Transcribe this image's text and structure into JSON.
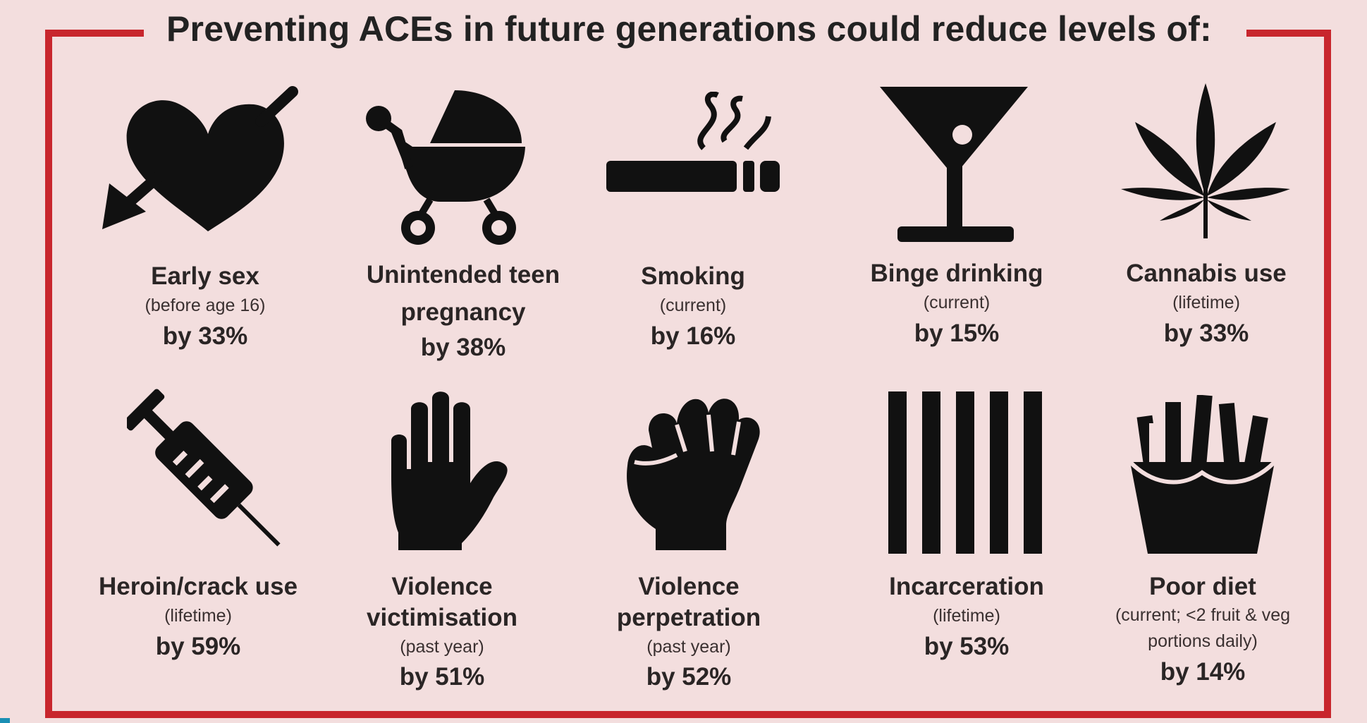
{
  "title": "Preventing ACEs in future generations could reduce levels of:",
  "items": [
    {
      "icon": "heart-with-arrow-icon",
      "label": "Early sex",
      "note": "(before age 16)",
      "value": "by 33%"
    },
    {
      "icon": "baby-pram-icon",
      "label": "Unintended teen pregnancy",
      "note": "",
      "value": "by 38%"
    },
    {
      "icon": "cigarette-icon",
      "label": "Smoking",
      "note": "(current)",
      "value": "by 16%"
    },
    {
      "icon": "cocktail-glass-icon",
      "label": "Binge drinking",
      "note": "(current)",
      "value": "by 15%"
    },
    {
      "icon": "cannabis-leaf-icon",
      "label": "Cannabis use",
      "note": "(lifetime)",
      "value": "by 33%"
    },
    {
      "icon": "syringe-icon",
      "label": "Heroin/crack use",
      "note": "(lifetime)",
      "value": "by 59%"
    },
    {
      "icon": "raised-hand-icon",
      "label": "Violence victimisation",
      "note": "(past year)",
      "value": "by 51%"
    },
    {
      "icon": "fist-icon",
      "label": "Violence perpetration",
      "note": "(past year)",
      "value": "by 52%"
    },
    {
      "icon": "prison-bars-icon",
      "label": "Incarceration",
      "note": "(lifetime)",
      "value": "by 53%"
    },
    {
      "icon": "fries-icon",
      "label": "Poor diet",
      "note": "(current; <2 fruit & veg portions daily)",
      "value": "by 14%"
    }
  ],
  "colors": {
    "background": "#f3dede",
    "frame": "#c8262d",
    "icon": "#111111"
  }
}
